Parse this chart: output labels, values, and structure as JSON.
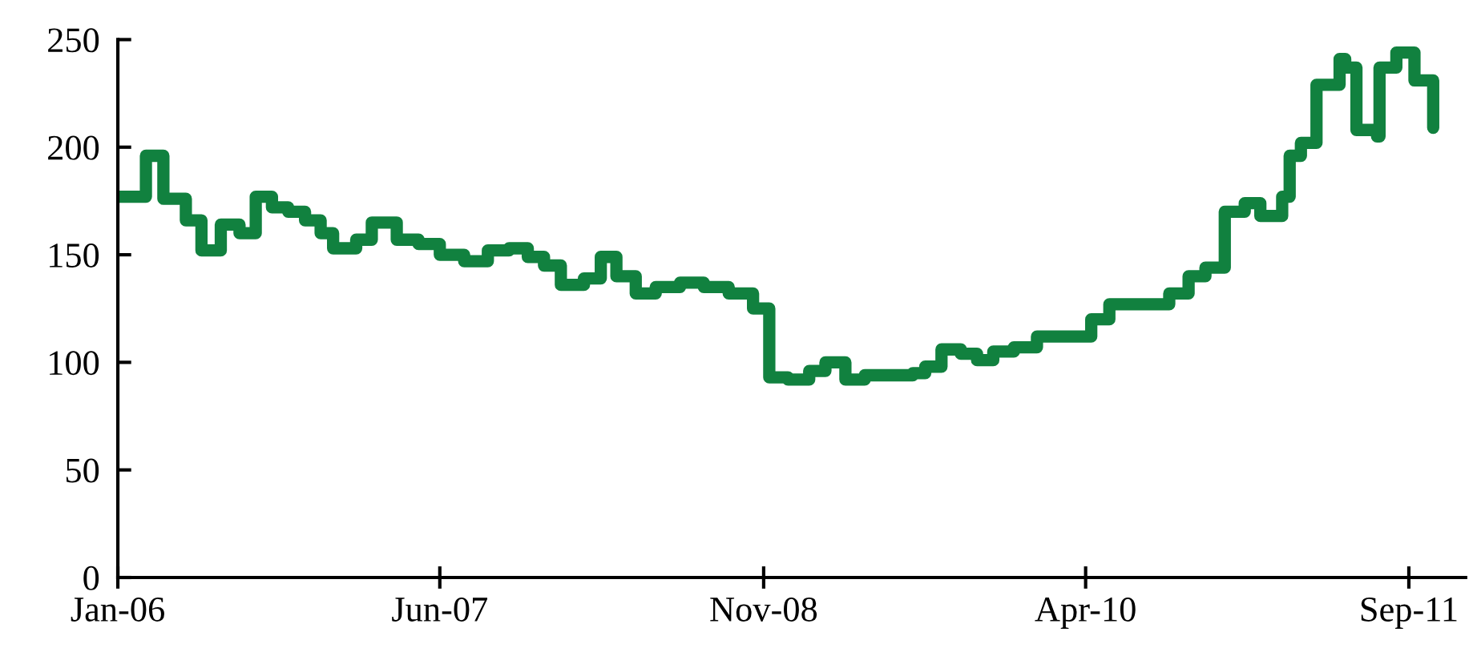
{
  "chart_data": {
    "type": "step",
    "color": "#11813f",
    "line_style": "solid",
    "marker": "none",
    "grid": false,
    "legend": false,
    "x": [
      "2006-01-01",
      "2006-02-15",
      "2006-03-15",
      "2006-04-20",
      "2006-05-15",
      "2006-06-15",
      "2006-07-15",
      "2006-08-10",
      "2006-09-05",
      "2006-10-01",
      "2006-10-28",
      "2006-11-22",
      "2006-12-12",
      "2007-01-18",
      "2007-02-12",
      "2007-03-24",
      "2007-04-28",
      "2007-06-01",
      "2007-07-10",
      "2007-08-17",
      "2007-09-20",
      "2007-10-20",
      "2007-11-15",
      "2007-12-12",
      "2008-01-18",
      "2008-02-14",
      "2008-03-10",
      "2008-04-10",
      "2008-05-12",
      "2008-06-20",
      "2008-07-28",
      "2008-09-06",
      "2008-10-15",
      "2008-11-10",
      "2008-12-10",
      "2009-01-13",
      "2009-02-08",
      "2009-03-12",
      "2009-04-12",
      "2009-06-03",
      "2009-06-28",
      "2009-07-18",
      "2009-08-13",
      "2009-09-13",
      "2009-10-09",
      "2009-11-04",
      "2009-12-07",
      "2010-01-13",
      "2010-04-10",
      "2010-05-09",
      "2010-08-13",
      "2010-09-13",
      "2010-10-10",
      "2010-11-10",
      "2010-12-12",
      "2011-01-06",
      "2011-02-10",
      "2011-02-22",
      "2011-03-12",
      "2011-04-06",
      "2011-05-13",
      "2011-05-22",
      "2011-06-09",
      "2011-07-12",
      "2011-07-16",
      "2011-08-12",
      "2011-09-10",
      "2011-10-10"
    ],
    "values": [
      177,
      196,
      176,
      166,
      152,
      164,
      160,
      177,
      172,
      170,
      166,
      160,
      153,
      157,
      165,
      157,
      155,
      150,
      147,
      152,
      153,
      149,
      145,
      136,
      139,
      149,
      140,
      132,
      135,
      137,
      135,
      132,
      125,
      93,
      92,
      96,
      100,
      92,
      94,
      94,
      95,
      98,
      106,
      104,
      101,
      105,
      107,
      112,
      120,
      127,
      132,
      140,
      144,
      170,
      174,
      168,
      177,
      196,
      202,
      229,
      241,
      237,
      208,
      205,
      237,
      244,
      231,
      209
    ],
    "xlim": [
      "2006-01-01",
      "2011-12-01"
    ],
    "xticks": [
      {
        "value": "2006-01-01",
        "label": "Jan-06"
      },
      {
        "value": "2007-06-01",
        "label": "Jun-07"
      },
      {
        "value": "2008-11-01",
        "label": "Nov-08"
      },
      {
        "value": "2010-04-01",
        "label": "Apr-10"
      },
      {
        "value": "2011-09-01",
        "label": "Sep-11"
      }
    ],
    "ylim": [
      0,
      250
    ],
    "yticks": [
      0,
      50,
      100,
      150,
      200,
      250
    ]
  }
}
